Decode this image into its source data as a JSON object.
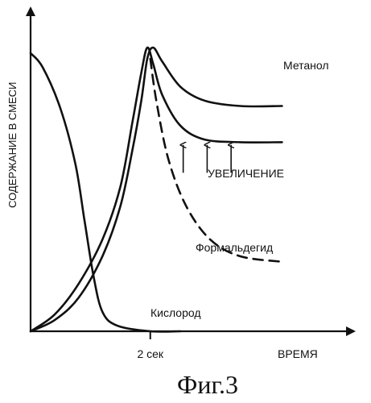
{
  "chart_data": {
    "type": "line",
    "xlabel": "ВРЕМЯ",
    "ylabel": "СОДЕРЖАНИЕ В СМЕСИ",
    "x_ticks": [
      {
        "x": 2,
        "label": "2 сек"
      }
    ],
    "xlim": [
      0,
      4.8
    ],
    "ylim": [
      0,
      1.2
    ],
    "grid": false,
    "series": [
      {
        "name": "Метанол",
        "style": "solid",
        "points": [
          [
            0,
            0
          ],
          [
            0.4,
            0.04
          ],
          [
            0.8,
            0.12
          ],
          [
            1.2,
            0.27
          ],
          [
            1.5,
            0.45
          ],
          [
            1.7,
            0.65
          ],
          [
            1.85,
            0.83
          ],
          [
            1.95,
            0.98
          ],
          [
            2.05,
            1.02
          ],
          [
            2.2,
            0.97
          ],
          [
            2.5,
            0.88
          ],
          [
            2.9,
            0.83
          ],
          [
            3.5,
            0.81
          ],
          [
            4.2,
            0.81
          ]
        ]
      },
      {
        "name": "",
        "style": "solid",
        "points": [
          [
            0,
            0
          ],
          [
            0.4,
            0.06
          ],
          [
            0.8,
            0.17
          ],
          [
            1.2,
            0.33
          ],
          [
            1.5,
            0.52
          ],
          [
            1.7,
            0.75
          ],
          [
            1.85,
            0.93
          ],
          [
            1.95,
            1.02
          ],
          [
            2.05,
            0.96
          ],
          [
            2.2,
            0.85
          ],
          [
            2.5,
            0.74
          ],
          [
            2.9,
            0.69
          ],
          [
            3.5,
            0.68
          ],
          [
            4.2,
            0.68
          ]
        ]
      },
      {
        "name": "Формальдегид",
        "style": "dashed",
        "points": [
          [
            2.0,
            0.98
          ],
          [
            2.1,
            0.83
          ],
          [
            2.3,
            0.62
          ],
          [
            2.6,
            0.45
          ],
          [
            3.0,
            0.33
          ],
          [
            3.5,
            0.27
          ],
          [
            4.2,
            0.25
          ]
        ]
      },
      {
        "name": "Кислород",
        "style": "solid",
        "points": [
          [
            0,
            1.0
          ],
          [
            0.2,
            0.95
          ],
          [
            0.5,
            0.8
          ],
          [
            0.75,
            0.6
          ],
          [
            0.9,
            0.4
          ],
          [
            1.05,
            0.2
          ],
          [
            1.2,
            0.07
          ],
          [
            1.45,
            0.02
          ],
          [
            2.0,
            0
          ],
          [
            2.5,
            0
          ]
        ]
      }
    ],
    "annotations": [
      {
        "text": "Метанол",
        "target": "Метанол"
      },
      {
        "text": "УВЕЛИЧЕНИЕ",
        "arrows": 3,
        "x": [
          2.55,
          2.95,
          3.35
        ],
        "y_from": 0.57,
        "y_to": 0.67
      },
      {
        "text": "Формальдегид",
        "target": "Формальдегид"
      },
      {
        "text": "Кислород",
        "target": "Кислород"
      }
    ],
    "caption": "Фиг.3"
  }
}
